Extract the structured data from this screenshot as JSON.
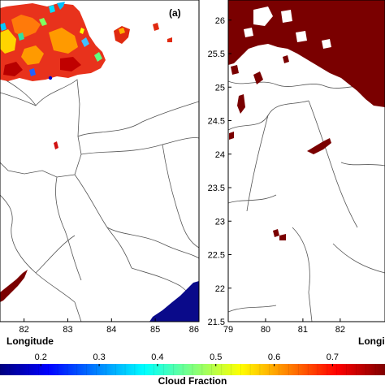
{
  "chart_data": [
    {
      "type": "heatmap",
      "panel_label": "(a)",
      "xlabel": "Longitude",
      "ylabel": "",
      "x_ticks": [
        "82",
        "83",
        "84",
        "85",
        "86"
      ],
      "x_tick_values": [
        82,
        83,
        84,
        85,
        86
      ],
      "xlim": [
        81.45,
        86.0
      ],
      "ylim": [
        21.5,
        26.3
      ],
      "y_ticks_visible": false,
      "grid": false,
      "legend": "none"
    },
    {
      "type": "heatmap",
      "panel_label": "",
      "xlabel": "Longi",
      "ylabel": "",
      "x_ticks": [
        "79",
        "80",
        "81",
        "82"
      ],
      "x_tick_values": [
        79,
        80,
        81,
        82
      ],
      "y_ticks": [
        "21.5",
        "22",
        "22.5",
        "23",
        "23.5",
        "24",
        "24.5",
        "25",
        "25.5",
        "26"
      ],
      "y_tick_values": [
        21.5,
        22,
        22.5,
        23,
        23.5,
        24,
        24.5,
        25,
        25.5,
        26
      ],
      "xlim": [
        79.0,
        83.2
      ],
      "ylim": [
        21.5,
        26.3
      ],
      "grid": false,
      "legend": "none"
    }
  ],
  "colorbar": {
    "label": "Cloud Fraction",
    "ticks": [
      "0.2",
      "0.3",
      "0.4",
      "0.5",
      "0.6",
      "0.7"
    ],
    "tick_values": [
      0.2,
      0.3,
      0.4,
      0.5,
      0.6,
      0.7
    ],
    "range": [
      0.13,
      0.79
    ],
    "colormap": [
      "#00007f",
      "#0000ff",
      "#0080ff",
      "#00ffff",
      "#80ff80",
      "#ffff00",
      "#ff8000",
      "#ff0000",
      "#7f0000"
    ],
    "placement": "bottom"
  },
  "colors": {
    "high_cloud": "#7a0000",
    "low_cloud": "#0a0a8a",
    "boundary": "#555555"
  }
}
